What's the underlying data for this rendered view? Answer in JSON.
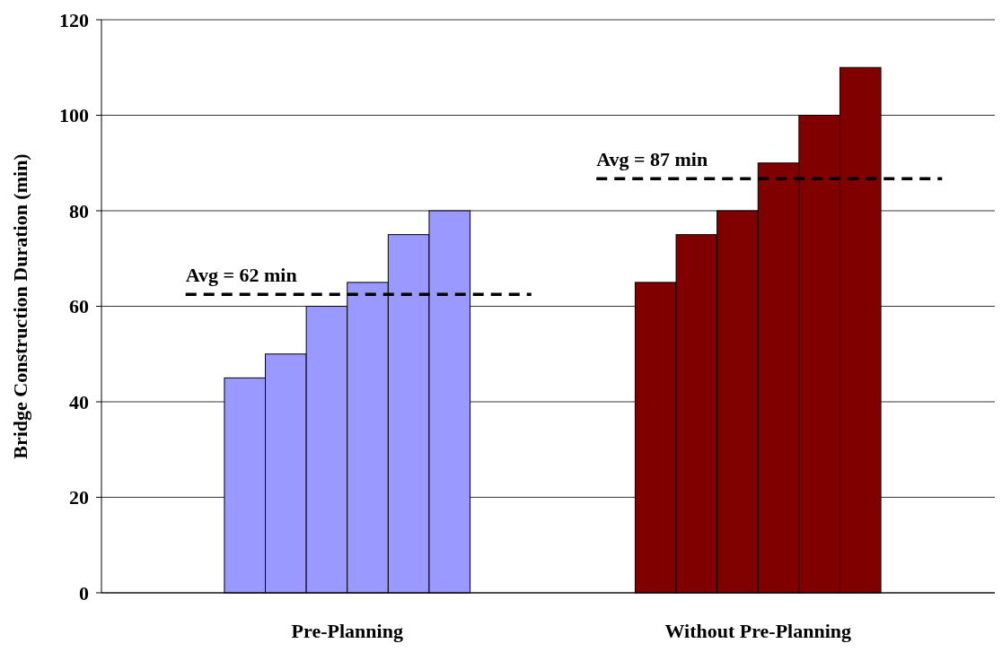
{
  "chart_data": {
    "type": "bar",
    "ylabel": "Bridge Construction Duration (min)",
    "categories": [
      "Pre-Planning",
      "Without Pre-Planning"
    ],
    "series": [
      {
        "colors": [
          "#9999ff",
          "#800000"
        ],
        "values": [
          45,
          65
        ]
      },
      {
        "colors": [
          "#9999ff",
          "#800000"
        ],
        "values": [
          50,
          75
        ]
      },
      {
        "colors": [
          "#9999ff",
          "#800000"
        ],
        "values": [
          60,
          80
        ]
      },
      {
        "colors": [
          "#9999ff",
          "#800000"
        ],
        "values": [
          65,
          90
        ]
      },
      {
        "colors": [
          "#9999ff",
          "#800000"
        ],
        "values": [
          75,
          100
        ]
      },
      {
        "colors": [
          "#9999ff",
          "#800000"
        ],
        "values": [
          80,
          110
        ]
      }
    ],
    "ylim": [
      0,
      120
    ],
    "yticks": [
      0,
      20,
      40,
      60,
      80,
      100,
      120
    ],
    "grid": "y",
    "ref_lines": [
      {
        "axis": "y",
        "value": 62.5,
        "label": "Avg = 62 min",
        "color": "#000000",
        "line_style": "dashed"
      },
      {
        "axis": "y",
        "value": 86.7,
        "label": "Avg = 87 min",
        "color": "#000000",
        "line_style": "dashed"
      }
    ]
  }
}
